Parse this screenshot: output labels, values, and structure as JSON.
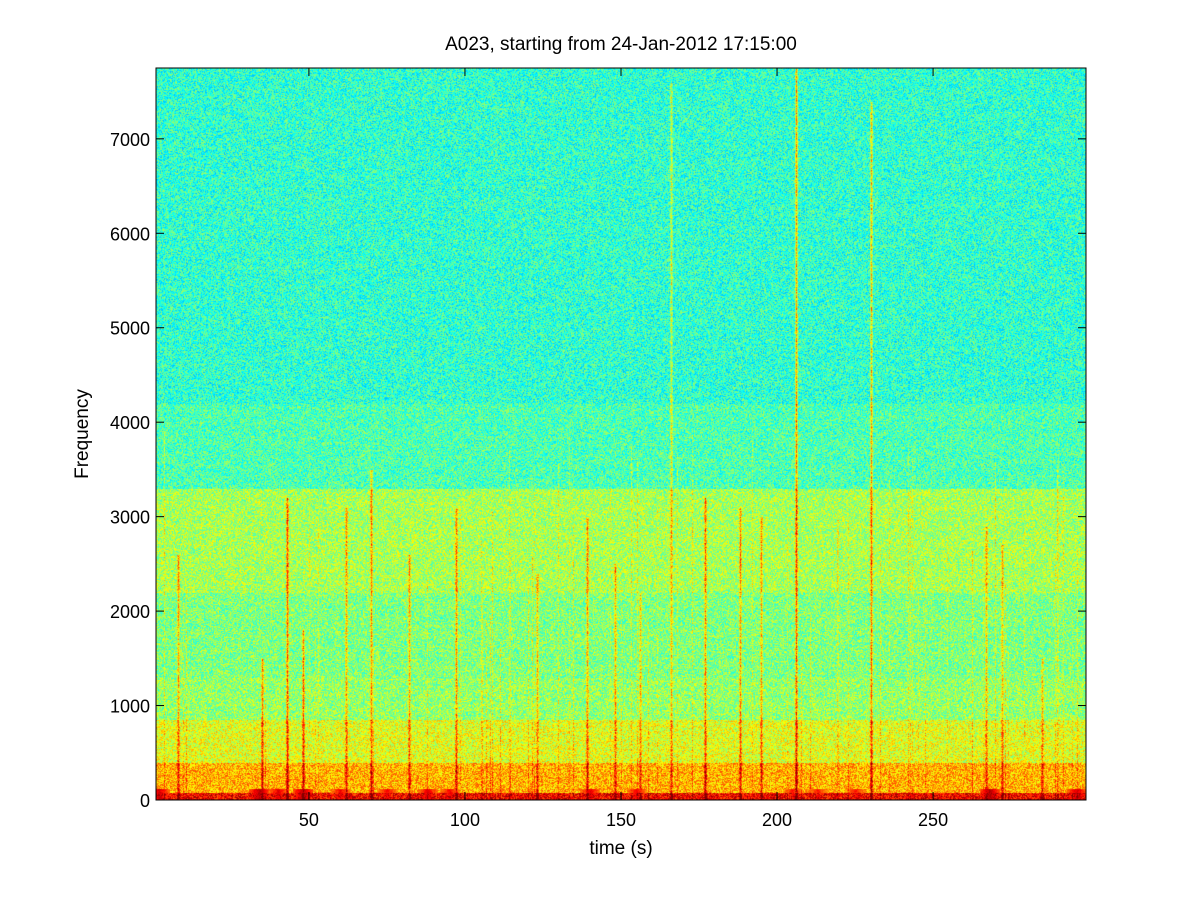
{
  "chart_data": {
    "type": "heatmap",
    "title": "A023, starting from 24-Jan-2012 17:15:00",
    "xlabel": "time (s)",
    "ylabel": "Frequency",
    "xlim": [
      1,
      299
    ],
    "ylim": [
      0,
      7750
    ],
    "x_ticks": [
      50,
      100,
      150,
      200,
      250
    ],
    "y_ticks": [
      0,
      1000,
      2000,
      3000,
      4000,
      5000,
      6000,
      7000
    ],
    "x_tick_labels": [
      "50",
      "100",
      "150",
      "200",
      "250"
    ],
    "y_tick_labels": [
      "0",
      "1000",
      "2000",
      "3000",
      "4000",
      "5000",
      "6000",
      "7000"
    ],
    "colormap": "jet",
    "grid": false,
    "legend": "none",
    "background_intensity": 0.42,
    "bands": [
      {
        "freq_min": 0,
        "freq_max": 80,
        "intensity": 0.88
      },
      {
        "freq_min": 80,
        "freq_max": 400,
        "intensity": 0.7
      },
      {
        "freq_min": 400,
        "freq_max": 850,
        "intensity": 0.6
      },
      {
        "freq_min": 850,
        "freq_max": 1300,
        "intensity": 0.52
      },
      {
        "freq_min": 1300,
        "freq_max": 2200,
        "intensity": 0.5
      },
      {
        "freq_min": 2200,
        "freq_max": 3300,
        "intensity": 0.54
      },
      {
        "freq_min": 3300,
        "freq_max": 4200,
        "intensity": 0.45
      },
      {
        "freq_min": 4200,
        "freq_max": 7750,
        "intensity": 0.42
      }
    ],
    "transients": [
      {
        "time": 8,
        "freq_max": 2600,
        "intensity": 0.62
      },
      {
        "time": 35,
        "freq_max": 1500,
        "intensity": 0.66
      },
      {
        "time": 43,
        "freq_max": 3200,
        "intensity": 0.7
      },
      {
        "time": 48,
        "freq_max": 1800,
        "intensity": 0.68
      },
      {
        "time": 62,
        "freq_max": 3100,
        "intensity": 0.62
      },
      {
        "time": 70,
        "freq_max": 3500,
        "intensity": 0.64
      },
      {
        "time": 82,
        "freq_max": 2600,
        "intensity": 0.62
      },
      {
        "time": 97,
        "freq_max": 3100,
        "intensity": 0.66
      },
      {
        "time": 123,
        "freq_max": 2400,
        "intensity": 0.6
      },
      {
        "time": 139,
        "freq_max": 3000,
        "intensity": 0.64
      },
      {
        "time": 148,
        "freq_max": 2500,
        "intensity": 0.62
      },
      {
        "time": 156,
        "freq_max": 2200,
        "intensity": 0.6
      },
      {
        "time": 166,
        "freq_max": 7600,
        "intensity": 0.6
      },
      {
        "time": 177,
        "freq_max": 3200,
        "intensity": 0.66
      },
      {
        "time": 188,
        "freq_max": 3100,
        "intensity": 0.64
      },
      {
        "time": 195,
        "freq_max": 3000,
        "intensity": 0.62
      },
      {
        "time": 206,
        "freq_max": 7750,
        "intensity": 0.72
      },
      {
        "time": 230,
        "freq_max": 7400,
        "intensity": 0.68
      },
      {
        "time": 267,
        "freq_max": 2900,
        "intensity": 0.6
      },
      {
        "time": 272,
        "freq_max": 2700,
        "intensity": 0.6
      },
      {
        "time": 285,
        "freq_max": 1500,
        "intensity": 0.6
      }
    ],
    "hot_spots": [
      {
        "time": 2,
        "intensity": 0.92
      },
      {
        "time": 34,
        "intensity": 0.95
      },
      {
        "time": 40,
        "intensity": 0.9
      },
      {
        "time": 48,
        "intensity": 0.95
      },
      {
        "time": 60,
        "intensity": 0.88
      },
      {
        "time": 75,
        "intensity": 0.88
      },
      {
        "time": 88,
        "intensity": 0.9
      },
      {
        "time": 95,
        "intensity": 0.88
      },
      {
        "time": 140,
        "intensity": 0.9
      },
      {
        "time": 155,
        "intensity": 0.88
      },
      {
        "time": 205,
        "intensity": 0.86
      },
      {
        "time": 213,
        "intensity": 0.86
      },
      {
        "time": 225,
        "intensity": 0.86
      },
      {
        "time": 268,
        "intensity": 0.95
      },
      {
        "time": 296,
        "intensity": 0.92
      }
    ]
  }
}
